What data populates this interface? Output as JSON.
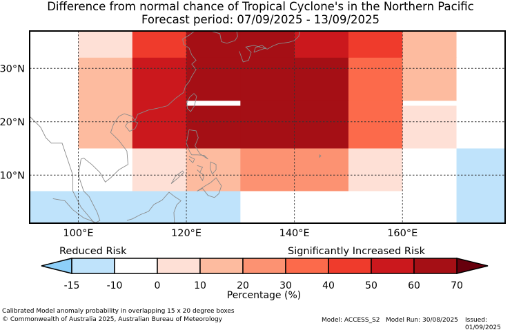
{
  "title": {
    "line1": "Difference from normal chance of Tropical Cyclone's in the Northern Pacific",
    "line2": "Forecast period: 07/09/2025 - 13/09/2025"
  },
  "map": {
    "lon_range": [
      91,
      179
    ],
    "lat_range": [
      1,
      37
    ],
    "lon_ticks": [
      100,
      120,
      140,
      160
    ],
    "lat_ticks": [
      10,
      20,
      30
    ],
    "lon_tick_labels": [
      "100°E",
      "120°E",
      "140°E",
      "160°E"
    ],
    "lat_tick_labels": [
      "10°N",
      "20°N",
      "30°N"
    ],
    "cells": [
      {
        "lon": [
          90,
          100
        ],
        "lat": [
          32,
          37
        ],
        "v": -10
      },
      {
        "lon": [
          100,
          110
        ],
        "lat": [
          32,
          37
        ],
        "v": 5
      },
      {
        "lon": [
          110,
          120
        ],
        "lat": [
          32,
          37
        ],
        "v": 45
      },
      {
        "lon": [
          120,
          130
        ],
        "lat": [
          32,
          37
        ],
        "v": 65
      },
      {
        "lon": [
          130,
          140
        ],
        "lat": [
          32,
          37
        ],
        "v": 65
      },
      {
        "lon": [
          140,
          150
        ],
        "lat": [
          32,
          37
        ],
        "v": 55
      },
      {
        "lon": [
          150,
          160
        ],
        "lat": [
          32,
          37
        ],
        "v": 45
      },
      {
        "lon": [
          160,
          170
        ],
        "lat": [
          32,
          37
        ],
        "v": 15
      },
      {
        "lon": [
          170,
          180
        ],
        "lat": [
          32,
          37
        ],
        "v": -5
      },
      {
        "lon": [
          90,
          100
        ],
        "lat": [
          24,
          32
        ],
        "v": -5
      },
      {
        "lon": [
          100,
          110
        ],
        "lat": [
          24,
          32
        ],
        "v": 15
      },
      {
        "lon": [
          110,
          120
        ],
        "lat": [
          24,
          32
        ],
        "v": 55
      },
      {
        "lon": [
          120,
          130
        ],
        "lat": [
          24,
          32
        ],
        "v": 65
      },
      {
        "lon": [
          130,
          140
        ],
        "lat": [
          24,
          32
        ],
        "v": 65
      },
      {
        "lon": [
          140,
          150
        ],
        "lat": [
          24,
          32
        ],
        "v": 60
      },
      {
        "lon": [
          150,
          160
        ],
        "lat": [
          24,
          32
        ],
        "v": 35
      },
      {
        "lon": [
          160,
          170
        ],
        "lat": [
          24,
          32
        ],
        "v": 15
      },
      {
        "lon": [
          170,
          180
        ],
        "lat": [
          24,
          32
        ],
        "v": -5
      },
      {
        "lon": [
          90,
          100
        ],
        "lat": [
          15,
          24
        ],
        "v": -5
      },
      {
        "lon": [
          100,
          110
        ],
        "lat": [
          15,
          24
        ],
        "v": 15
      },
      {
        "lon": [
          110,
          120
        ],
        "lat": [
          15,
          24
        ],
        "v": 55
      },
      {
        "lon": [
          120,
          130
        ],
        "lat": [
          15,
          23
        ],
        "v": 60
      },
      {
        "lon": [
          130,
          140
        ],
        "lat": [
          15,
          24
        ],
        "v": 65
      },
      {
        "lon": [
          140,
          150
        ],
        "lat": [
          15,
          24
        ],
        "v": 60
      },
      {
        "lon": [
          150,
          160
        ],
        "lat": [
          15,
          24
        ],
        "v": 35
      },
      {
        "lon": [
          160,
          170
        ],
        "lat": [
          15,
          23
        ],
        "v": 5
      },
      {
        "lon": [
          170,
          180
        ],
        "lat": [
          15,
          23
        ],
        "v": -10
      },
      {
        "lon": [
          90,
          100
        ],
        "lat": [
          7,
          15
        ],
        "v": -10
      },
      {
        "lon": [
          100,
          110
        ],
        "lat": [
          7,
          15
        ],
        "v": -5
      },
      {
        "lon": [
          110,
          120
        ],
        "lat": [
          7,
          15
        ],
        "v": 5
      },
      {
        "lon": [
          120,
          130
        ],
        "lat": [
          7,
          15
        ],
        "v": 15
      },
      {
        "lon": [
          130,
          140
        ],
        "lat": [
          7,
          15
        ],
        "v": 25
      },
      {
        "lon": [
          140,
          150
        ],
        "lat": [
          7,
          15
        ],
        "v": 25
      },
      {
        "lon": [
          150,
          160
        ],
        "lat": [
          7,
          15
        ],
        "v": 5
      },
      {
        "lon": [
          160,
          170
        ],
        "lat": [
          7,
          15
        ],
        "v": -5
      },
      {
        "lon": [
          170,
          180
        ],
        "lat": [
          7,
          15
        ],
        "v": -15
      },
      {
        "lon": [
          90,
          130
        ],
        "lat": [
          0,
          7
        ],
        "v": -15
      },
      {
        "lon": [
          130,
          170
        ],
        "lat": [
          0,
          7
        ],
        "v": -10
      },
      {
        "lon": [
          170,
          180
        ],
        "lat": [
          0,
          7
        ],
        "v": -15
      }
    ]
  },
  "colorbar": {
    "boundaries": [
      -15,
      -10,
      0,
      10,
      20,
      30,
      40,
      50,
      60,
      70
    ],
    "colors": [
      "#bfe3fb",
      "#ffffff",
      "#fee0d6",
      "#fdbb9f",
      "#fc9272",
      "#fc6a4b",
      "#ef3b2c",
      "#cb181d",
      "#a50f15"
    ],
    "under_color": "#8dcff9",
    "over_color": "#67000d",
    "tick_labels": [
      "-15",
      "-10",
      "0",
      "10",
      "20",
      "30",
      "40",
      "50",
      "60",
      "70"
    ],
    "reduced_label": "Reduced Risk",
    "increased_label": "Significantly Increased Risk",
    "xlabel": "Percentage (%)"
  },
  "footer": {
    "line1": "Calibrated Model anomaly probability in overlapping 15 x 20 degree boxes",
    "line2": "© Commonwealth of Australia 2025, Australian Bureau of Meteorology",
    "model": "Model: ACCESS_S2",
    "run": "Model Run: 30/08/2025",
    "issued": "Issued: 01/09/2025"
  }
}
